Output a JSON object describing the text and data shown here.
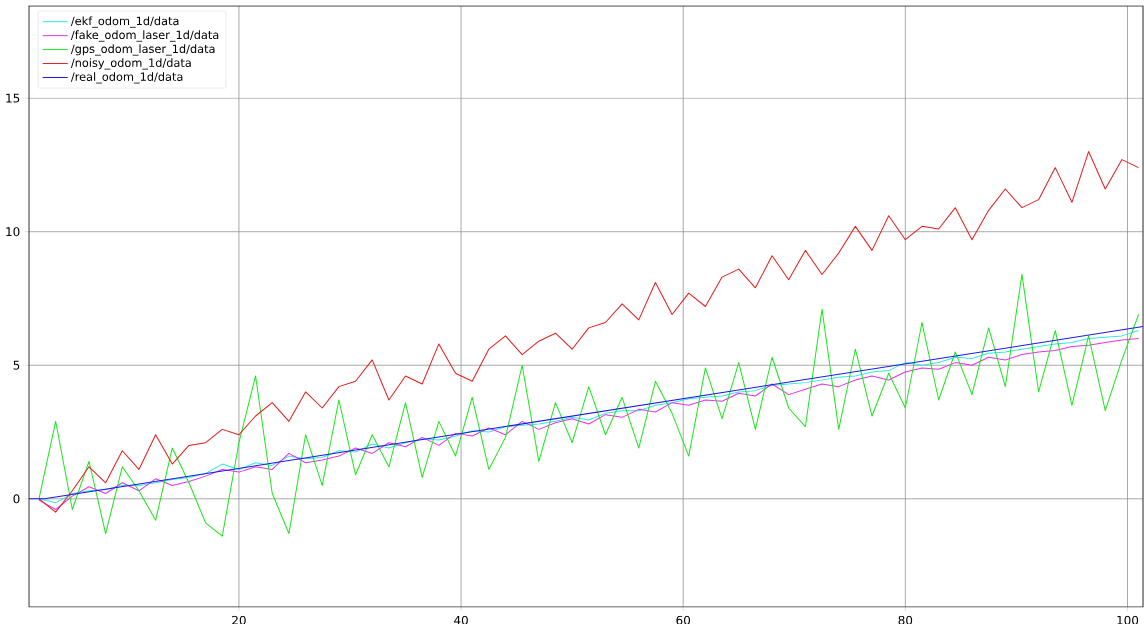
{
  "chart_data": {
    "type": "line",
    "x": [
      2,
      3.5,
      5,
      6.5,
      8,
      9.5,
      11,
      12.5,
      14,
      15.5,
      17,
      18.5,
      20,
      21.5,
      23,
      24.5,
      26,
      27.5,
      29,
      30.5,
      32,
      33.5,
      35,
      36.5,
      38,
      39.5,
      41,
      42.5,
      44,
      45.5,
      47,
      48.5,
      50,
      51.5,
      53,
      54.5,
      56,
      57.5,
      59,
      60.5,
      62,
      63.5,
      65,
      66.5,
      68,
      69.5,
      71,
      72.5,
      74,
      75.5,
      77,
      78.5,
      80,
      81.5,
      83,
      84.5,
      86,
      87.5,
      89,
      90.5,
      92,
      93.5,
      95,
      96.5,
      98,
      99.5,
      101
    ],
    "series": [
      {
        "name": "/ekf_odom_1d/data",
        "color": "#33e6e6",
        "values": [
          0,
          -0.15,
          0.2,
          0.3,
          0.35,
          0.5,
          0.5,
          0.6,
          0.72,
          0.8,
          0.95,
          1.3,
          1.1,
          1.35,
          1.25,
          1.6,
          1.5,
          1.55,
          1.8,
          1.75,
          2.05,
          1.9,
          2.1,
          2.25,
          2.2,
          2.35,
          2.55,
          2.5,
          2.7,
          2.75,
          2.8,
          2.9,
          3.05,
          2.95,
          3.2,
          3.3,
          3.3,
          3.5,
          3.6,
          3.75,
          3.8,
          3.85,
          4.0,
          4.05,
          4.25,
          4.3,
          4.35,
          4.45,
          4.55,
          4.6,
          4.75,
          4.8,
          5.1,
          5.0,
          5.1,
          5.3,
          5.25,
          5.45,
          5.5,
          5.6,
          5.7,
          5.8,
          5.85,
          6.0,
          6.05,
          6.1,
          6.3
        ]
      },
      {
        "name": "/fake_odom_laser_1d/data",
        "color": "#e633e6",
        "values": [
          -0.05,
          -0.4,
          0.1,
          0.45,
          0.2,
          0.6,
          0.3,
          0.75,
          0.5,
          0.65,
          0.85,
          1.1,
          1.0,
          1.2,
          1.1,
          1.7,
          1.35,
          1.45,
          1.6,
          1.9,
          1.7,
          2.1,
          1.95,
          2.3,
          2.0,
          2.45,
          2.35,
          2.65,
          2.4,
          2.9,
          2.6,
          2.85,
          3.0,
          2.8,
          3.15,
          3.05,
          3.35,
          3.25,
          3.6,
          3.5,
          3.7,
          3.65,
          3.95,
          3.85,
          4.3,
          3.9,
          4.1,
          4.3,
          4.2,
          4.45,
          4.6,
          4.45,
          4.75,
          4.9,
          4.85,
          5.1,
          5.0,
          5.3,
          5.2,
          5.4,
          5.5,
          5.55,
          5.7,
          5.75,
          5.85,
          5.95,
          6.0
        ]
      },
      {
        "name": "/gps_odom_laser_1d/data",
        "color": "#1ae61a",
        "values": [
          0,
          2.9,
          -0.4,
          1.4,
          -1.3,
          1.2,
          0.3,
          -0.8,
          1.9,
          0.6,
          -0.9,
          -1.4,
          2.1,
          4.6,
          0.2,
          -1.3,
          2.4,
          0.5,
          3.7,
          0.9,
          2.4,
          1.2,
          3.6,
          0.8,
          2.9,
          1.6,
          3.8,
          1.1,
          2.3,
          5.0,
          1.4,
          3.6,
          2.1,
          4.2,
          2.4,
          3.8,
          1.9,
          4.4,
          3.2,
          1.6,
          4.9,
          3.0,
          5.1,
          2.6,
          5.3,
          3.4,
          2.7,
          7.1,
          2.6,
          5.6,
          3.1,
          4.7,
          3.4,
          6.6,
          3.7,
          5.5,
          3.9,
          6.4,
          4.2,
          8.4,
          4.0,
          6.3,
          3.5,
          6.1,
          3.3,
          5.2,
          6.9
        ]
      },
      {
        "name": "/noisy_odom_1d/data",
        "color": "#e61a1a",
        "values": [
          0,
          -0.5,
          0.3,
          1.2,
          0.6,
          1.8,
          1.1,
          2.4,
          1.3,
          2.0,
          2.1,
          2.6,
          2.4,
          3.1,
          3.6,
          2.9,
          4.0,
          3.4,
          4.2,
          4.4,
          5.2,
          3.7,
          4.6,
          4.3,
          5.8,
          4.7,
          4.4,
          5.6,
          6.1,
          5.4,
          5.9,
          6.2,
          5.6,
          6.4,
          6.6,
          7.3,
          6.7,
          8.1,
          6.9,
          7.7,
          7.2,
          8.3,
          8.6,
          7.9,
          9.1,
          8.2,
          9.3,
          8.4,
          9.2,
          10.2,
          9.3,
          10.6,
          9.7,
          10.2,
          10.1,
          10.9,
          9.7,
          10.8,
          11.6,
          10.9,
          11.2,
          12.4,
          11.1,
          13.0,
          11.6,
          12.7,
          12.4
        ]
      },
      {
        "name": "/real_odom_1d/data",
        "color": "#1a1ae6",
        "x": [
          1.1,
          2.5,
          101.4
        ],
        "values": [
          0,
          0,
          6.45
        ]
      }
    ],
    "xlim": [
      1.1,
      101.4
    ],
    "ylim": [
      -4.05,
      18.45
    ],
    "xticks": [
      20,
      40,
      60,
      80,
      100
    ],
    "yticks": [
      0,
      5,
      10,
      15
    ],
    "grid": true,
    "legend": "top left"
  }
}
